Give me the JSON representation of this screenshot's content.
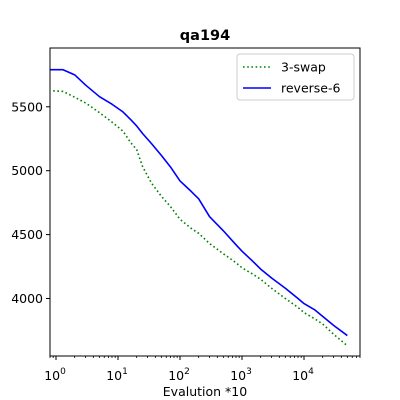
{
  "chart_data": {
    "type": "line",
    "title": "qa194",
    "xlabel": "Evalution *10",
    "ylabel": "",
    "x_scale": "log",
    "xlim": [
      0.8,
      80000
    ],
    "ylim": [
      3550,
      5960
    ],
    "grid": false,
    "legend_position": "top-right",
    "x_ticks": [
      1,
      10,
      100,
      1000,
      10000
    ],
    "x_tick_labels": [
      {
        "base": "10",
        "exp": "0"
      },
      {
        "base": "10",
        "exp": "1"
      },
      {
        "base": "10",
        "exp": "2"
      },
      {
        "base": "10",
        "exp": "3"
      },
      {
        "base": "10",
        "exp": "4"
      }
    ],
    "y_ticks": [
      4000,
      4500,
      5000,
      5500
    ],
    "y_tick_labels": [
      "4000",
      "4500",
      "5000",
      "5500"
    ],
    "series": [
      {
        "name": "3-swap",
        "color": "#008000",
        "style": "dotted",
        "points": [
          [
            0.9,
            5625
          ],
          [
            1.3,
            5620
          ],
          [
            2,
            5575
          ],
          [
            3,
            5530
          ],
          [
            5,
            5455
          ],
          [
            8,
            5380
          ],
          [
            12,
            5310
          ],
          [
            16,
            5220
          ],
          [
            20,
            5165
          ],
          [
            25,
            5030
          ],
          [
            35,
            4900
          ],
          [
            50,
            4800
          ],
          [
            70,
            4720
          ],
          [
            100,
            4620
          ],
          [
            150,
            4550
          ],
          [
            200,
            4510
          ],
          [
            300,
            4430
          ],
          [
            500,
            4350
          ],
          [
            800,
            4280
          ],
          [
            1000,
            4240
          ],
          [
            1500,
            4190
          ],
          [
            2000,
            4150
          ],
          [
            3000,
            4080
          ],
          [
            5000,
            4000
          ],
          [
            8000,
            3930
          ],
          [
            10000,
            3890
          ],
          [
            15000,
            3840
          ],
          [
            20000,
            3800
          ],
          [
            30000,
            3720
          ],
          [
            50000,
            3630
          ]
        ]
      },
      {
        "name": "reverse-6",
        "color": "#0000ff",
        "style": "solid",
        "points": [
          [
            0.8,
            5790
          ],
          [
            1.3,
            5790
          ],
          [
            2,
            5750
          ],
          [
            3,
            5670
          ],
          [
            5,
            5580
          ],
          [
            8,
            5520
          ],
          [
            12,
            5460
          ],
          [
            16,
            5400
          ],
          [
            20,
            5350
          ],
          [
            25,
            5290
          ],
          [
            35,
            5210
          ],
          [
            50,
            5120
          ],
          [
            70,
            5030
          ],
          [
            100,
            4920
          ],
          [
            150,
            4840
          ],
          [
            200,
            4780
          ],
          [
            300,
            4640
          ],
          [
            500,
            4530
          ],
          [
            800,
            4420
          ],
          [
            1000,
            4370
          ],
          [
            1500,
            4290
          ],
          [
            2000,
            4230
          ],
          [
            3000,
            4160
          ],
          [
            5000,
            4080
          ],
          [
            8000,
            4000
          ],
          [
            10000,
            3960
          ],
          [
            15000,
            3910
          ],
          [
            20000,
            3860
          ],
          [
            30000,
            3790
          ],
          [
            50000,
            3710
          ]
        ]
      }
    ]
  }
}
